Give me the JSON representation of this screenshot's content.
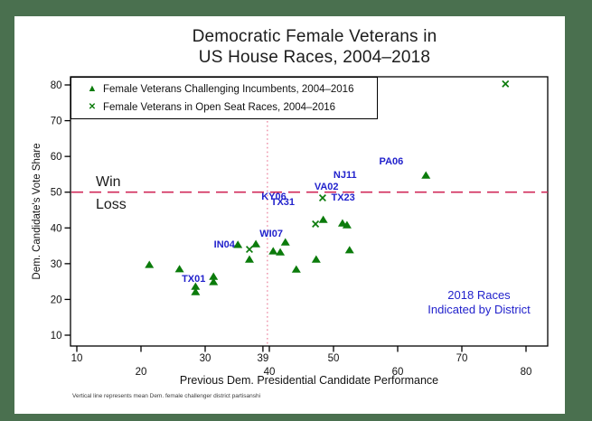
{
  "frame": {
    "border_color": "#4a704f",
    "canvas_color": "#ffffff"
  },
  "title": {
    "line1": "Democratic Female Veterans in",
    "line2": "US House Races, 2004–2018"
  },
  "legend": {
    "items": [
      {
        "marker": "triangle-marker-icon",
        "label": "Female Veterans Challenging Incumbents, 2004–2016"
      },
      {
        "marker": "x-marker-icon",
        "label": "Female Veterans in Open Seat Races, 2004–2016"
      }
    ]
  },
  "annotations": {
    "win_label": "Win",
    "loss_label": "Loss",
    "races_note_line1": "2018 Races",
    "races_note_line2": "Indicated by District",
    "footnote": "Vertical line represents mean Dem. female challenger district partisanshi"
  },
  "chart_data": {
    "type": "scatter",
    "title": "Democratic Female Veterans in US House Races, 2004–2018",
    "xlabel": "Previous Dem. Presidential Candidate Performance",
    "ylabel": "Dem. Candidate's Vote Share",
    "xlim": [
      9,
      83.5
    ],
    "ylim": [
      7,
      82.5
    ],
    "grid": false,
    "legend_position": "top-left-inside",
    "x_ticks": [
      {
        "value": 10,
        "row": 1
      },
      {
        "value": 20,
        "row": 2
      },
      {
        "value": 30,
        "row": 1
      },
      {
        "value": 39,
        "row": 1
      },
      {
        "value": 40,
        "row": 2
      },
      {
        "value": 50,
        "row": 1
      },
      {
        "value": 60,
        "row": 2
      },
      {
        "value": 70,
        "row": 1
      },
      {
        "value": 80,
        "row": 2
      }
    ],
    "y_ticks": [
      10,
      20,
      30,
      40,
      50,
      60,
      70,
      80
    ],
    "win_loss_line": {
      "y": 50,
      "color": "#d12a5a",
      "style": "dashed"
    },
    "mean_line": {
      "x": 39.7,
      "labeled_tick": 39,
      "color": "#e8728f",
      "style": "dotted"
    },
    "series": [
      {
        "name": "Female Veterans Challenging Incumbents, 2004–2016",
        "marker": "triangle",
        "color": "#0b7b0b",
        "points": [
          [
            21.3,
            29.7
          ],
          [
            26.0,
            28.5
          ],
          [
            28.5,
            23.6
          ],
          [
            28.5,
            22.1
          ],
          [
            31.3,
            26.4
          ],
          [
            31.3,
            24.9
          ],
          [
            35.1,
            35.3
          ],
          [
            37.9,
            35.5
          ],
          [
            36.9,
            31.2
          ],
          [
            40.6,
            33.5
          ],
          [
            41.7,
            33.2
          ],
          [
            42.5,
            36.0
          ],
          [
            44.2,
            28.4
          ],
          [
            47.3,
            31.2
          ],
          [
            48.4,
            42.3
          ],
          [
            51.4,
            41.3
          ],
          [
            52.1,
            40.8
          ],
          [
            52.5,
            33.8
          ],
          [
            64.4,
            54.7
          ]
        ]
      },
      {
        "name": "Female Veterans in Open Seat Races, 2004–2016",
        "marker": "x",
        "color": "#0b7b0b",
        "points": [
          [
            36.9,
            34.0
          ],
          [
            47.2,
            41.1
          ],
          [
            48.3,
            48.4
          ],
          [
            76.8,
            80.3
          ]
        ]
      }
    ],
    "district_labels_2018": {
      "color": "#2222cc",
      "items": [
        {
          "label": "TX01",
          "x": 28.2,
          "y": 25.9
        },
        {
          "label": "IN04",
          "x": 33.0,
          "y": 35.5
        },
        {
          "label": "WI07",
          "x": 40.3,
          "y": 38.6
        },
        {
          "label": "KY06",
          "x": 40.7,
          "y": 48.9
        },
        {
          "label": "TX31",
          "x": 42.1,
          "y": 47.4
        },
        {
          "label": "VA02",
          "x": 48.9,
          "y": 51.7
        },
        {
          "label": "TX23",
          "x": 51.5,
          "y": 48.7
        },
        {
          "label": "NJ11",
          "x": 51.8,
          "y": 55.0
        },
        {
          "label": "PA06",
          "x": 59.0,
          "y": 58.8
        }
      ]
    }
  }
}
